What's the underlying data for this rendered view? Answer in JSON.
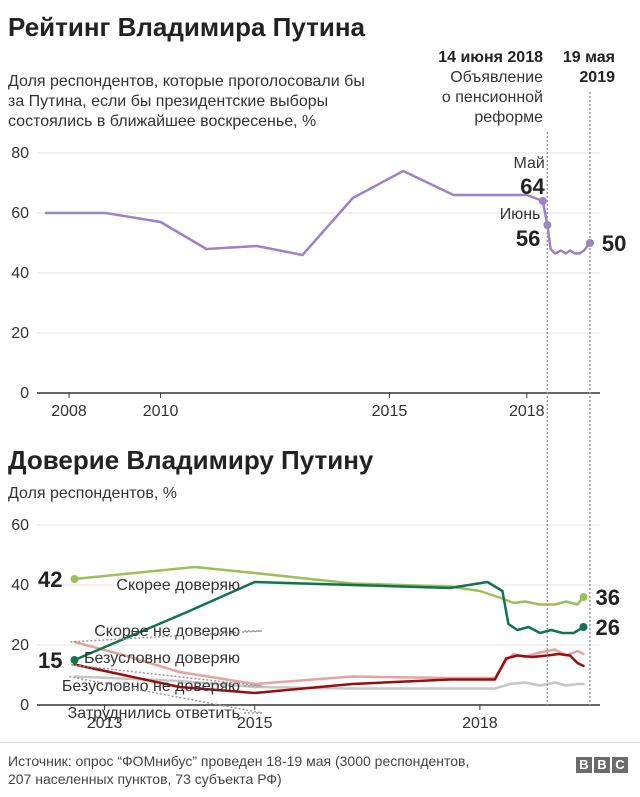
{
  "colors": {
    "rating": "#9b82c9",
    "probably_trust": "#9cbf5a",
    "probably_not_trust": "#e6a3a3",
    "definitely_trust": "#12734d",
    "definitely_not_trust": "#9a0e10",
    "undecided": "#c6c6c6",
    "axis": "#333333",
    "grid": "#e3e3e3",
    "annotation": "#999999"
  },
  "chart1": {
    "title": "Рейтинг Владимира Путина",
    "subtitle_lines": [
      "Доля респондентов, которые проголосовали бы",
      "за Путина, если бы президентские выборы",
      "состоялись в ближайшее воскресенье, %"
    ],
    "event1_date": "14 июня 2018",
    "event1_text_lines": [
      "Объявление",
      "о пенсионной",
      "реформе"
    ],
    "event2_date_lines": [
      "19 мая",
      "2019"
    ],
    "label_may": "Май",
    "value_may": "64",
    "label_june": "Июнь",
    "value_june": "56",
    "value_last": "50"
  },
  "chart2": {
    "title": "Доверие Владимиру Путину",
    "subtitle": "Доля респондентов, %",
    "series_labels": {
      "probably_trust": "Скорее доверяю",
      "probably_not_trust": "Скорее не доверяю",
      "definitely_trust": "Безусловно доверяю",
      "definitely_not_trust": "Безусловно не доверяю",
      "undecided": "Затруднились ответить"
    },
    "value_probably_trust_start": "42",
    "value_definitely_trust_start": "15",
    "value_probably_trust_end": "36",
    "value_definitely_trust_end": "26"
  },
  "footer": {
    "source_lines": [
      "Источник: опрос “ФОМнибус” проведен 18-19 мая (3000 респондентов,",
      "207 населенных пунктов, 73 субъекта РФ)"
    ],
    "logo_letters": [
      "B",
      "B",
      "C"
    ]
  },
  "chart_data": [
    {
      "type": "line",
      "title": "Рейтинг Владимира Путина",
      "ylabel": "Доля респондентов, которые проголосовали бы за Путина, если бы президентские выборы состоялись в ближайшее воскресенье, %",
      "xlim": [
        2007.3,
        2019.6
      ],
      "ylim": [
        0,
        80
      ],
      "yticks": [
        0,
        20,
        40,
        60,
        80
      ],
      "xticks": [
        {
          "value": 2008,
          "label": "2008"
        },
        {
          "value": 2010,
          "label": "2010"
        },
        {
          "value": 2015,
          "label": "2015"
        },
        {
          "value": 2018,
          "label": "2018"
        }
      ],
      "grid": true,
      "annotations": [
        {
          "x": 2018.45,
          "label": "14 июня 2018 Объявление о пенсионной реформе"
        },
        {
          "x": 2019.38,
          "label": "19 мая 2019"
        }
      ],
      "series": [
        {
          "color_key": "rating",
          "x": [
            2007.5,
            2008.8,
            2010.0,
            2011.0,
            2012.1,
            2013.1,
            2014.2,
            2015.3,
            2016.4,
            2017.4,
            2018.0,
            2018.35,
            2018.45,
            2018.52,
            2018.62,
            2018.75,
            2018.85,
            2018.95,
            2019.05,
            2019.15,
            2019.25,
            2019.38
          ],
          "y": [
            60,
            60,
            57,
            48,
            49,
            46,
            65,
            74,
            66,
            66,
            66,
            64,
            56,
            48,
            46.5,
            47.5,
            46.5,
            47.5,
            46.5,
            46.5,
            47.5,
            50
          ]
        }
      ]
    },
    {
      "type": "line",
      "title": "Доверие Владимиру Путину",
      "ylabel": "Доля респондентов, %",
      "xlim": [
        2012.1,
        2019.6
      ],
      "ylim": [
        0,
        60
      ],
      "yticks": [
        0,
        20,
        40,
        60
      ],
      "xticks": [
        {
          "value": 2013,
          "label": "2013"
        },
        {
          "value": 2015,
          "label": "2015"
        },
        {
          "value": 2018,
          "label": "2018"
        }
      ],
      "grid": true,
      "series": [
        {
          "name": "Скорее доверяю",
          "color_key": "probably_trust",
          "x": [
            2012.6,
            2014.2,
            2015.0,
            2016.3,
            2017.6,
            2018.0,
            2018.3,
            2018.45,
            2018.6,
            2018.8,
            2019.0,
            2019.15,
            2019.3,
            2019.38
          ],
          "y": [
            42,
            46,
            44,
            40.5,
            39.5,
            38,
            35.5,
            34,
            34.5,
            33.5,
            33.5,
            34.5,
            33.5,
            36
          ]
        },
        {
          "name": "Скорее не доверяю",
          "color_key": "probably_not_trust",
          "x": [
            2012.6,
            2013.2,
            2014.0,
            2015.0,
            2016.3,
            2017.6,
            2018.2,
            2018.35,
            2018.45,
            2018.6,
            2018.8,
            2019.0,
            2019.15,
            2019.3,
            2019.38
          ],
          "y": [
            21,
            17,
            11,
            7,
            9.5,
            9,
            9,
            15,
            17,
            16,
            17.5,
            18.5,
            16.5,
            18,
            17
          ]
        },
        {
          "name": "Безусловно доверяю",
          "color_key": "definitely_trust",
          "x": [
            2012.6,
            2014.1,
            2015.0,
            2016.3,
            2017.6,
            2018.1,
            2018.3,
            2018.38,
            2018.5,
            2018.65,
            2018.8,
            2018.95,
            2019.1,
            2019.25,
            2019.38
          ],
          "y": [
            15,
            31,
            41,
            40,
            39,
            41,
            38,
            27,
            25,
            26,
            24,
            25,
            24,
            24,
            26
          ]
        },
        {
          "name": "Безусловно не доверяю",
          "color_key": "definitely_not_trust",
          "x": [
            2012.6,
            2014.0,
            2015.0,
            2016.3,
            2017.6,
            2018.2,
            2018.35,
            2018.5,
            2018.7,
            2018.9,
            2019.05,
            2019.2,
            2019.3,
            2019.38
          ],
          "y": [
            13.5,
            6,
            4,
            7,
            8.5,
            8.5,
            15.5,
            16.5,
            16,
            16.5,
            17,
            16.5,
            14,
            13
          ]
        },
        {
          "name": "Затруднились ответить",
          "color_key": "undecided",
          "x": [
            2012.6,
            2014.0,
            2015.0,
            2016.3,
            2017.6,
            2018.2,
            2018.4,
            2018.6,
            2018.8,
            2019.0,
            2019.15,
            2019.3,
            2019.38
          ],
          "y": [
            9.5,
            8,
            6,
            5.5,
            5.5,
            5.5,
            7,
            7.5,
            6.5,
            7.5,
            6.5,
            7,
            7
          ]
        }
      ]
    }
  ]
}
